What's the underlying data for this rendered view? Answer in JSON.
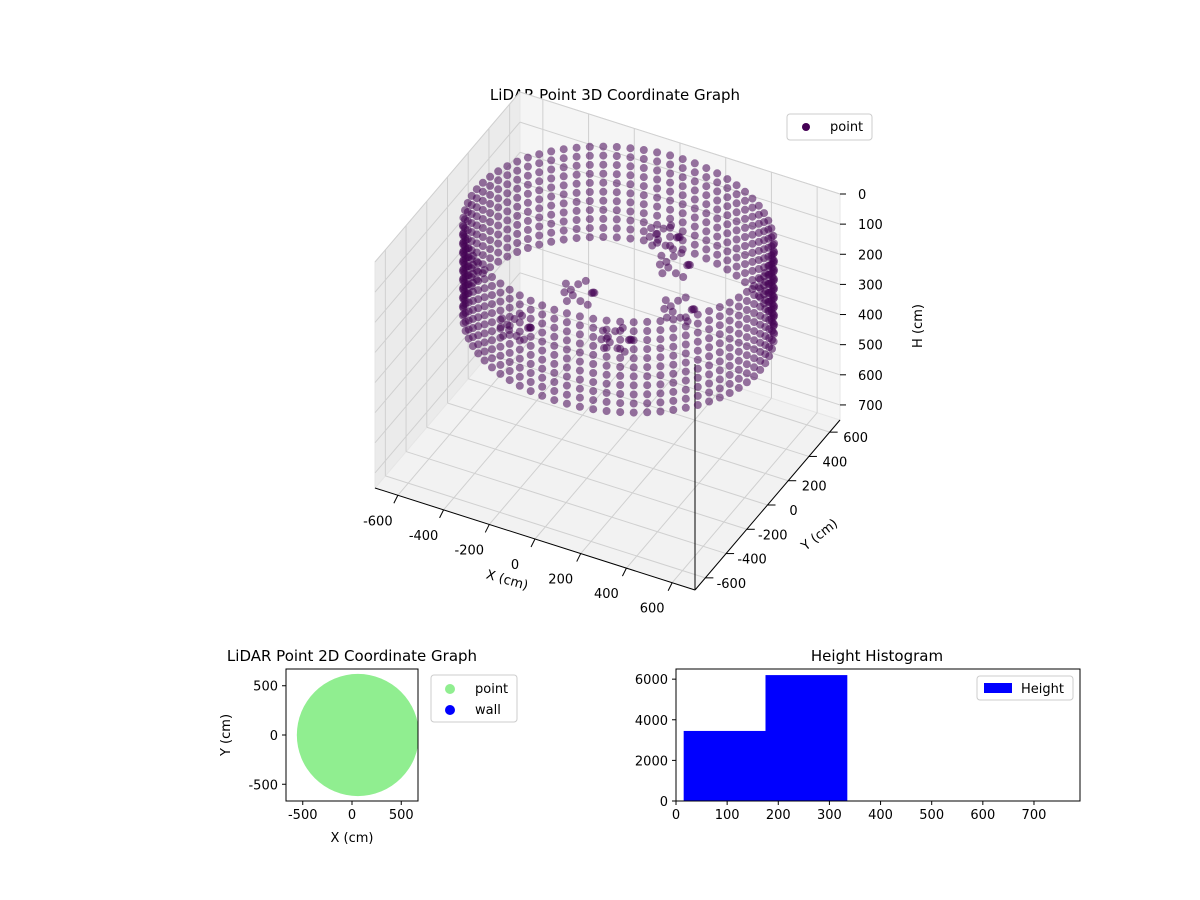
{
  "chart_data": [
    {
      "type": "scatter",
      "projection": "3d",
      "title": "LiDAR Point 3D Coordinate Graph",
      "xlabel": "X (cm)",
      "ylabel": "Y (cm)",
      "zlabel": "H (cm)",
      "xlim": [
        -700,
        700
      ],
      "ylim": [
        -700,
        700
      ],
      "zlim": [
        0,
        750
      ],
      "z_inverted": true,
      "x_ticks": [
        -600,
        -400,
        -200,
        0,
        200,
        400,
        600
      ],
      "y_ticks": [
        -600,
        -400,
        -200,
        0,
        200,
        400,
        600
      ],
      "z_ticks": [
        0,
        100,
        200,
        300,
        400,
        500,
        600,
        700
      ],
      "grid": true,
      "legend_position": "upper-right",
      "series": [
        {
          "name": "point",
          "color": "#440154",
          "shape": "ring-of-points",
          "center": [
            30,
            40
          ],
          "wall_radius": 620,
          "heights": [
            30,
            60,
            90,
            120,
            150,
            180,
            210,
            240,
            270,
            300,
            330
          ],
          "inner_clusters": [
            {
              "x": -150,
              "y": 60,
              "h": 260
            },
            {
              "x": 80,
              "y": -90,
              "h": 300
            },
            {
              "x": 260,
              "y": 120,
              "h": 240
            },
            {
              "x": -320,
              "y": -180,
              "h": 320
            },
            {
              "x": 150,
              "y": 320,
              "h": 200
            },
            {
              "x": 60,
              "y": 420,
              "h": 170
            }
          ]
        }
      ]
    },
    {
      "type": "scatter",
      "title": "LiDAR Point 2D Coordinate Graph",
      "xlabel": "X (cm)",
      "ylabel": "Y (cm)",
      "xlim": [
        -670,
        670
      ],
      "ylim": [
        -670,
        670
      ],
      "x_ticks": [
        -500,
        0,
        500
      ],
      "y_ticks": [
        -500,
        0,
        500
      ],
      "legend_position": "outside-right",
      "series": [
        {
          "name": "point",
          "color": "#90ee90",
          "shape": "filled-disc",
          "center": [
            60,
            0
          ],
          "radius": 620
        },
        {
          "name": "wall",
          "color": "#0000ff"
        }
      ]
    },
    {
      "type": "bar",
      "subtype": "histogram",
      "title": "Height Histogram",
      "xlim": [
        0,
        790
      ],
      "ylim": [
        0,
        6500
      ],
      "x_ticks": [
        0,
        100,
        200,
        300,
        400,
        500,
        600,
        700
      ],
      "y_ticks": [
        0,
        2000,
        4000,
        6000
      ],
      "legend_position": "upper-right",
      "series": [
        {
          "name": "Height",
          "color": "#0000ff",
          "bins": [
            {
              "x0": 15,
              "x1": 175,
              "count": 3450
            },
            {
              "x0": 175,
              "x1": 335,
              "count": 6200
            },
            {
              "x0": 335,
              "x1": 495,
              "count": 0
            },
            {
              "x0": 495,
              "x1": 655,
              "count": 0
            },
            {
              "x0": 655,
              "x1": 790,
              "count": 0
            }
          ]
        }
      ]
    }
  ]
}
